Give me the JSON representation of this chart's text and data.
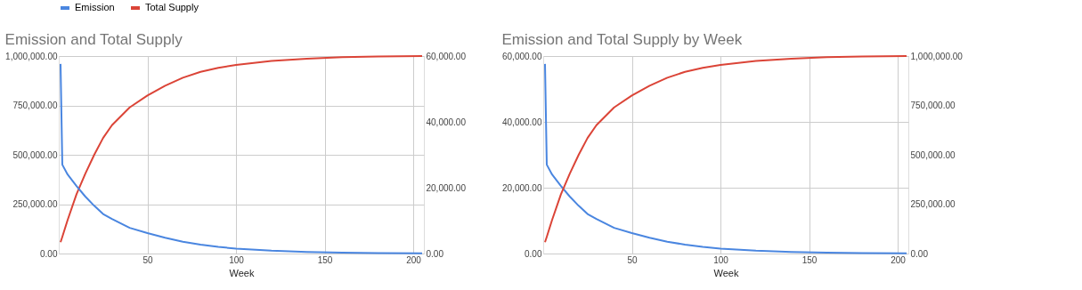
{
  "chart_data": [
    {
      "type": "line",
      "title": "Emission and Total Supply",
      "xlabel": "Week",
      "x": [
        1,
        2,
        5,
        10,
        15,
        20,
        25,
        30,
        40,
        50,
        60,
        70,
        80,
        90,
        100,
        120,
        140,
        160,
        180,
        205
      ],
      "xlim": [
        0,
        206
      ],
      "xticks": [
        50,
        100,
        150,
        200
      ],
      "ylim": [
        0,
        1000000
      ],
      "yticks": [
        {
          "value": 0,
          "label": "0.00"
        },
        {
          "value": 250000,
          "label": "250,000.00"
        },
        {
          "value": 500000,
          "label": "500,000.00"
        },
        {
          "value": 750000,
          "label": "750,000.00"
        },
        {
          "value": 1000000,
          "label": "1,000,000.00"
        }
      ],
      "y2lim": [
        0,
        60000
      ],
      "y2ticks": [
        {
          "value": 0,
          "label": "0.00"
        },
        {
          "value": 20000,
          "label": "20,000.00"
        },
        {
          "value": 40000,
          "label": "40,000.00"
        },
        {
          "value": 60000,
          "label": "60,000.00"
        }
      ],
      "grid": true,
      "legend": "top",
      "series": [
        {
          "name": "Emission",
          "color": "#4a86e0",
          "axis": "y2",
          "values": [
            57600,
            27000,
            24000,
            20500,
            17300,
            14500,
            12000,
            10500,
            7800,
            6200,
            4800,
            3600,
            2700,
            2000,
            1500,
            850,
            480,
            270,
            150,
            80
          ]
        },
        {
          "name": "Total Supply",
          "color": "#db4437",
          "axis": "y",
          "values": [
            57600,
            84600,
            170000,
            300000,
            405000,
            500000,
            585000,
            650000,
            740000,
            800000,
            850000,
            890000,
            920000,
            940000,
            955000,
            975000,
            987000,
            994000,
            998000,
            1000000
          ]
        }
      ]
    },
    {
      "type": "line",
      "title": "Emission and Total Supply by Week",
      "xlabel": "Week",
      "x": [
        1,
        2,
        5,
        10,
        15,
        20,
        25,
        30,
        40,
        50,
        60,
        70,
        80,
        90,
        100,
        120,
        140,
        160,
        180,
        205
      ],
      "xlim": [
        0,
        206
      ],
      "xticks": [
        50,
        100,
        150,
        200
      ],
      "ylim": [
        0,
        60000
      ],
      "yticks": [
        {
          "value": 0,
          "label": "0.00"
        },
        {
          "value": 20000,
          "label": "20,000.00"
        },
        {
          "value": 40000,
          "label": "40,000.00"
        },
        {
          "value": 60000,
          "label": "60,000.00"
        }
      ],
      "y2lim": [
        0,
        1000000
      ],
      "y2ticks": [
        {
          "value": 0,
          "label": "0.00"
        },
        {
          "value": 250000,
          "label": "250,000.00"
        },
        {
          "value": 500000,
          "label": "500,000.00"
        },
        {
          "value": 750000,
          "label": "750,000.00"
        },
        {
          "value": 1000000,
          "label": "1,000,000.00"
        }
      ],
      "grid": true,
      "legend": "top",
      "series": [
        {
          "name": "Emission",
          "color": "#4a86e0",
          "axis": "y",
          "values": [
            57600,
            27000,
            24000,
            20500,
            17300,
            14500,
            12000,
            10500,
            7800,
            6200,
            4800,
            3600,
            2700,
            2000,
            1500,
            850,
            480,
            270,
            150,
            80
          ]
        },
        {
          "name": "Total Supply",
          "color": "#db4437",
          "axis": "y2",
          "values": [
            57600,
            84600,
            170000,
            300000,
            405000,
            500000,
            585000,
            650000,
            740000,
            800000,
            850000,
            890000,
            920000,
            940000,
            955000,
            975000,
            987000,
            994000,
            998000,
            1000000
          ]
        }
      ]
    }
  ]
}
